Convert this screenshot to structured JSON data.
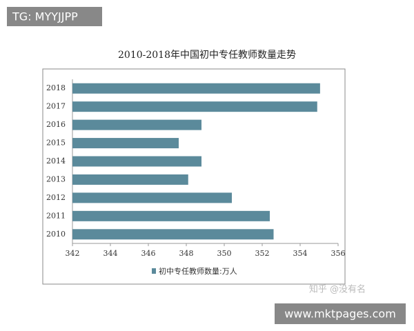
{
  "chart_data": {
    "type": "hbar",
    "title": "2010-2018年中国初中专任教师数量走势",
    "categories": [
      "2010",
      "2011",
      "2012",
      "2013",
      "2014",
      "2015",
      "2016",
      "2017",
      "2018"
    ],
    "series": [
      {
        "name": "初中专任教师数量:万人",
        "color": "#5b8a9b",
        "values": [
          352.6,
          352.4,
          350.4,
          348.1,
          348.8,
          347.6,
          348.8,
          354.9,
          355.05
        ]
      }
    ],
    "xlim": [
      342,
      356
    ],
    "xticks": [
      342,
      344,
      346,
      348,
      350,
      352,
      354,
      356
    ],
    "grid": false,
    "legend": "bottom"
  },
  "watermarks": [
    "TG: MYYJJPP",
    "知乎 @没有名",
    "www.mktpages.com"
  ]
}
